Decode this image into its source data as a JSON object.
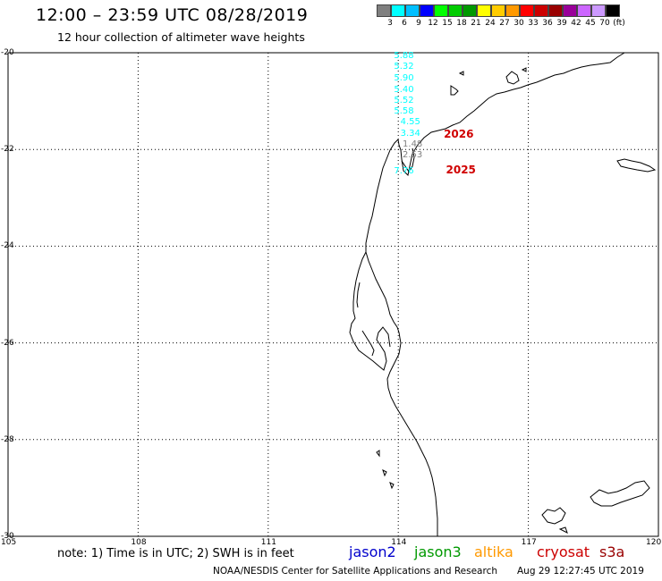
{
  "header": {
    "title": "12:00 – 23:59 UTC 08/28/2019",
    "subtitle": "12 hour collection of altimeter wave heights"
  },
  "scale": {
    "colors": [
      "#7f7f7f",
      "#00ffff",
      "#00bfff",
      "#0000ff",
      "#00ff00",
      "#00cc00",
      "#009900",
      "#ffff00",
      "#ffcc00",
      "#ff9900",
      "#ff0000",
      "#cc0000",
      "#990000",
      "#990099",
      "#cc66ff",
      "#cc99ff",
      "#000000"
    ],
    "labels": [
      "3",
      "6",
      "9",
      "12",
      "15",
      "18",
      "21",
      "24",
      "27",
      "30",
      "33",
      "36",
      "39",
      "42",
      "45",
      "70",
      "(ft)"
    ]
  },
  "axes": {
    "lat_labels": [
      "-20",
      "-22",
      "-24",
      "-26",
      "-28",
      "-30"
    ],
    "lon_labels": [
      "105",
      "108",
      "111",
      "114",
      "117",
      "120"
    ]
  },
  "observations": {
    "cyan": [
      {
        "lon": 113.9,
        "lat": -20.08,
        "value": "5.88"
      },
      {
        "lon": 113.9,
        "lat": -20.3,
        "value": "5.32"
      },
      {
        "lon": 113.9,
        "lat": -20.53,
        "value": "5.90"
      },
      {
        "lon": 113.9,
        "lat": -20.77,
        "value": "5.40"
      },
      {
        "lon": 113.9,
        "lat": -20.99,
        "value": "5.52"
      },
      {
        "lon": 113.9,
        "lat": -21.22,
        "value": "5.58"
      },
      {
        "lon": 114.05,
        "lat": -21.45,
        "value": "4.55"
      },
      {
        "lon": 114.05,
        "lat": -21.68,
        "value": "3.34"
      },
      {
        "lon": 113.9,
        "lat": -22.45,
        "value": "7.76"
      }
    ],
    "grey": [
      {
        "lon": 114.1,
        "lat": -21.9,
        "value": "1.48"
      },
      {
        "lon": 114.1,
        "lat": -22.13,
        "value": "2.53"
      }
    ]
  },
  "passes": [
    {
      "lon": 115.05,
      "lat": -21.68,
      "label": "2026"
    },
    {
      "lon": 115.1,
      "lat": -22.43,
      "label": "2025"
    }
  ],
  "footer": {
    "note": "note:  1) Time is in UTC;  2) SWH is in feet",
    "missions": [
      {
        "name": "jason2",
        "color": "#0000cc"
      },
      {
        "name": "jason3",
        "color": "#009900"
      },
      {
        "name": "altika",
        "color": "#ff9900"
      },
      {
        "name": "cryosat",
        "color": "#cc0000"
      },
      {
        "name": "s3a",
        "color": "#990000"
      }
    ],
    "credit": "NOAA/NESDIS Center for Satellite Applications and Research",
    "timestamp": "Aug 29 12:27:45 UTC 2019"
  }
}
